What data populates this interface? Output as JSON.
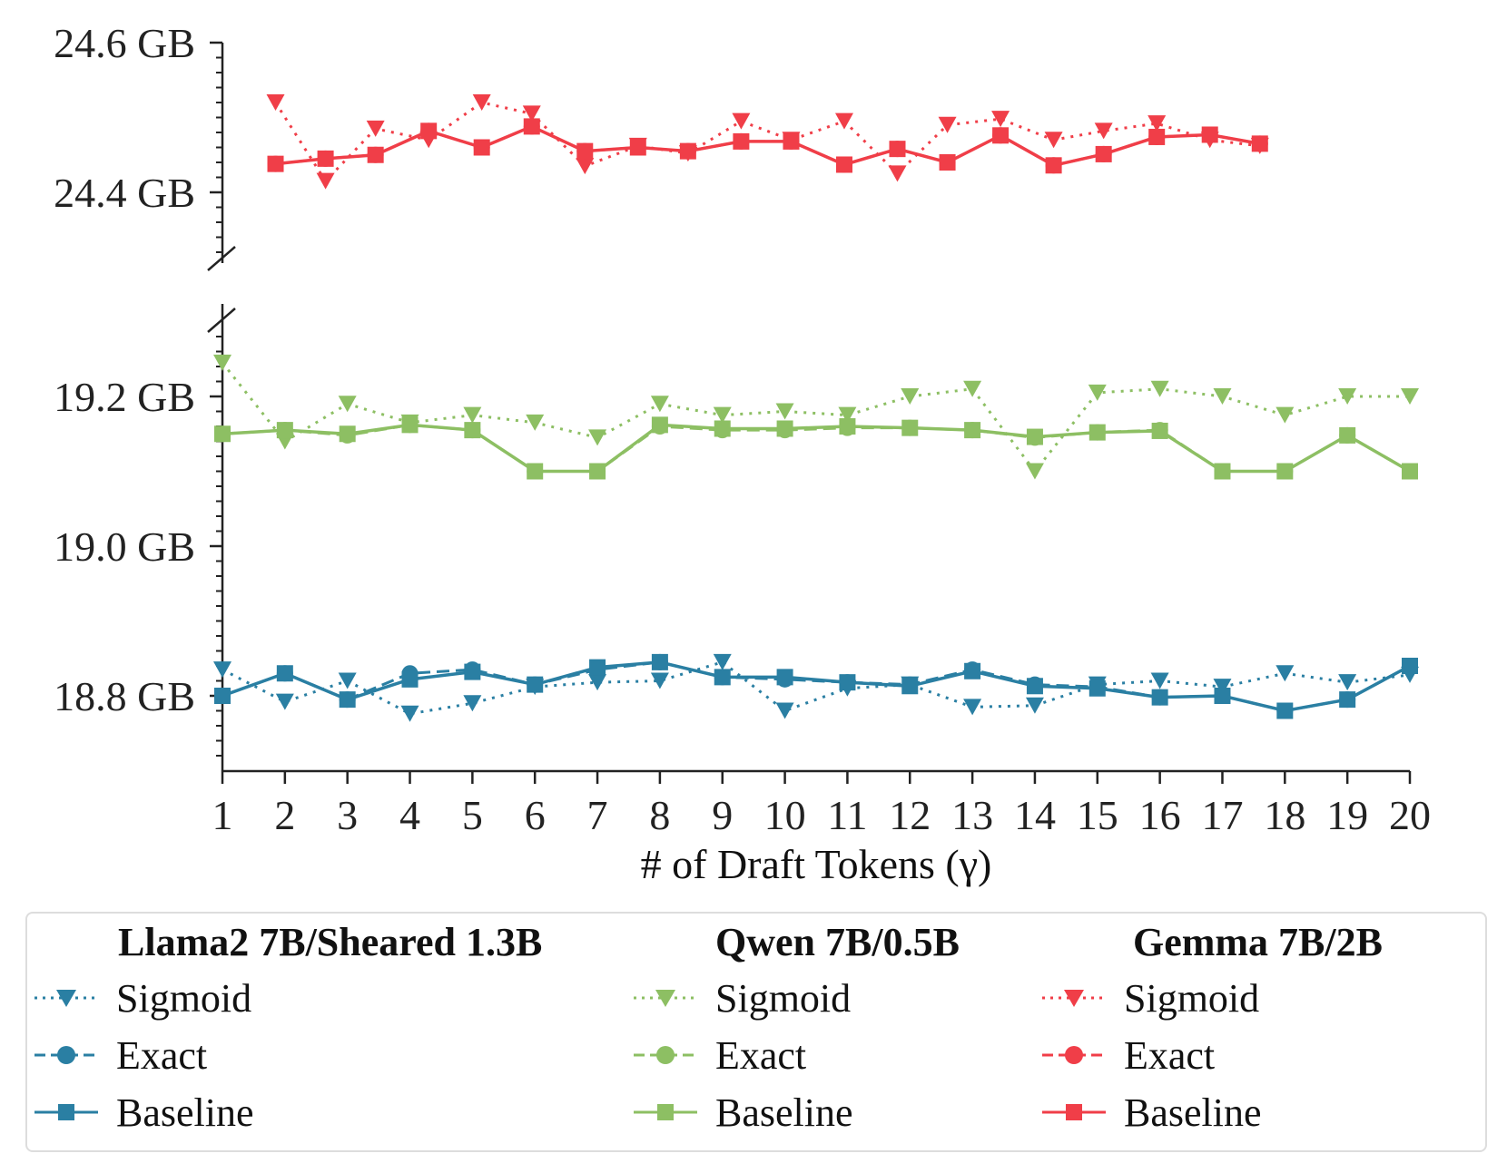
{
  "chart_data": {
    "type": "line",
    "xlabel": "# of Draft Tokens (γ)",
    "ylabel": "",
    "broken_y_axis": true,
    "x_ticks": [
      1,
      2,
      3,
      4,
      5,
      6,
      7,
      8,
      9,
      10,
      11,
      12,
      13,
      14,
      15,
      16,
      17,
      18,
      19,
      20
    ],
    "upper_panel": {
      "ylim": [
        24.3,
        24.6
      ],
      "ticks": [
        24.4,
        24.6
      ],
      "tick_labels": [
        "24.4 GB",
        "24.6 GB"
      ]
    },
    "lower_panel": {
      "ylim": [
        18.7,
        19.28
      ],
      "ticks": [
        18.8,
        19.0,
        19.2
      ],
      "tick_labels": [
        "18.8 GB",
        "19.0 GB",
        "19.2 GB"
      ]
    },
    "groups": [
      {
        "title": "Llama2 7B/Sheared 1.3B",
        "color": "#2a7fa3",
        "panel": "lower",
        "series": [
          {
            "name": "Sigmoid",
            "style": "dotted",
            "marker": "triangle-down",
            "x": [
              1,
              2,
              3,
              4,
              5,
              6,
              7,
              8,
              9,
              10,
              11,
              12,
              13,
              14,
              15,
              16,
              17,
              18,
              19,
              20
            ],
            "y": [
              18.835,
              18.792,
              18.82,
              18.776,
              18.79,
              18.812,
              18.818,
              18.82,
              18.845,
              18.78,
              18.81,
              18.815,
              18.785,
              18.787,
              18.815,
              18.82,
              18.812,
              18.83,
              18.818,
              18.828
            ]
          },
          {
            "name": "Exact",
            "style": "dashed",
            "marker": "circle",
            "x": [
              1,
              2,
              3,
              4,
              5,
              6,
              7,
              8,
              9,
              10,
              11,
              12,
              13,
              14,
              15,
              16,
              17,
              18,
              19,
              20
            ],
            "y": [
              18.8,
              18.83,
              18.795,
              18.83,
              18.835,
              18.815,
              18.835,
              18.845,
              18.825,
              18.822,
              18.818,
              18.815,
              18.835,
              18.815,
              18.812,
              18.798,
              18.8,
              18.78,
              18.795,
              18.84
            ]
          },
          {
            "name": "Baseline",
            "style": "solid",
            "marker": "square",
            "x": [
              1,
              2,
              3,
              4,
              5,
              6,
              7,
              8,
              9,
              10,
              11,
              12,
              13,
              14,
              15,
              16,
              17,
              18,
              19,
              20
            ],
            "y": [
              18.8,
              18.83,
              18.795,
              18.822,
              18.832,
              18.815,
              18.838,
              18.845,
              18.825,
              18.825,
              18.818,
              18.813,
              18.833,
              18.813,
              18.81,
              18.798,
              18.8,
              18.78,
              18.795,
              18.84
            ]
          }
        ]
      },
      {
        "title": "Qwen 7B/0.5B",
        "color": "#8dbf63",
        "panel": "lower",
        "series": [
          {
            "name": "Sigmoid",
            "style": "dotted",
            "marker": "triangle-down",
            "x": [
              1,
              2,
              3,
              4,
              5,
              6,
              7,
              8,
              9,
              10,
              11,
              12,
              13,
              14,
              15,
              16,
              17,
              18,
              19,
              20
            ],
            "y": [
              19.245,
              19.14,
              19.19,
              19.165,
              19.175,
              19.165,
              19.145,
              19.19,
              19.175,
              19.18,
              19.175,
              19.2,
              19.21,
              19.1,
              19.205,
              19.21,
              19.2,
              19.175,
              19.2,
              19.2
            ]
          },
          {
            "name": "Exact",
            "style": "dashed",
            "marker": "circle",
            "x": [
              1,
              2,
              3,
              4,
              5,
              6,
              7,
              8,
              9,
              10,
              11,
              12,
              13,
              14,
              15,
              16,
              17,
              18,
              19,
              20
            ],
            "y": [
              19.15,
              19.155,
              19.148,
              19.162,
              19.155,
              19.1,
              19.1,
              19.16,
              19.155,
              19.155,
              19.158,
              19.158,
              19.155,
              19.145,
              19.152,
              19.155,
              19.1,
              19.1,
              19.148,
              19.1
            ]
          },
          {
            "name": "Baseline",
            "style": "solid",
            "marker": "square",
            "x": [
              1,
              2,
              3,
              4,
              5,
              6,
              7,
              8,
              9,
              10,
              11,
              12,
              13,
              14,
              15,
              16,
              17,
              18,
              19,
              20
            ],
            "y": [
              19.15,
              19.155,
              19.15,
              19.162,
              19.155,
              19.1,
              19.1,
              19.162,
              19.157,
              19.157,
              19.16,
              19.158,
              19.155,
              19.146,
              19.152,
              19.154,
              19.1,
              19.1,
              19.148,
              19.1
            ]
          }
        ]
      },
      {
        "title": "Gemma 7B/2B",
        "color": "#f03e48",
        "panel": "upper",
        "series": [
          {
            "name": "Sigmoid",
            "style": "dotted",
            "marker": "triangle-down",
            "x": [
              1.85,
              2.65,
              3.45,
              4.3,
              5.15,
              5.95,
              6.8,
              7.65,
              8.45,
              9.3,
              10.1,
              10.95,
              11.8,
              12.6,
              13.45,
              14.3,
              15.1,
              15.95,
              16.8,
              17.6
            ],
            "y": [
              24.52,
              24.415,
              24.485,
              24.47,
              24.52,
              24.505,
              24.435,
              24.462,
              24.452,
              24.495,
              24.47,
              24.495,
              24.425,
              24.49,
              24.498,
              24.47,
              24.482,
              24.492,
              24.47,
              24.462
            ]
          },
          {
            "name": "Exact",
            "style": "dashed",
            "marker": "circle",
            "x": [
              1.85,
              2.65,
              3.45,
              4.3,
              5.15,
              5.95,
              6.8,
              7.65,
              8.45,
              9.3,
              10.1,
              10.95,
              11.8,
              12.6,
              13.45,
              14.3,
              15.1,
              15.95,
              16.8,
              17.6
            ],
            "y": [
              24.438,
              24.445,
              24.45,
              24.482,
              24.46,
              24.488,
              24.455,
              24.46,
              24.455,
              24.468,
              24.468,
              24.437,
              24.458,
              24.44,
              24.476,
              24.436,
              24.451,
              24.474,
              24.477,
              24.465
            ]
          },
          {
            "name": "Baseline",
            "style": "solid",
            "marker": "square",
            "x": [
              1.85,
              2.65,
              3.45,
              4.3,
              5.15,
              5.95,
              6.8,
              7.65,
              8.45,
              9.3,
              10.1,
              10.95,
              11.8,
              12.6,
              13.45,
              14.3,
              15.1,
              15.95,
              16.8,
              17.6
            ],
            "y": [
              24.438,
              24.445,
              24.45,
              24.482,
              24.46,
              24.488,
              24.455,
              24.46,
              24.455,
              24.468,
              24.468,
              24.437,
              24.458,
              24.44,
              24.476,
              24.436,
              24.451,
              24.474,
              24.477,
              24.465
            ]
          }
        ]
      }
    ]
  }
}
